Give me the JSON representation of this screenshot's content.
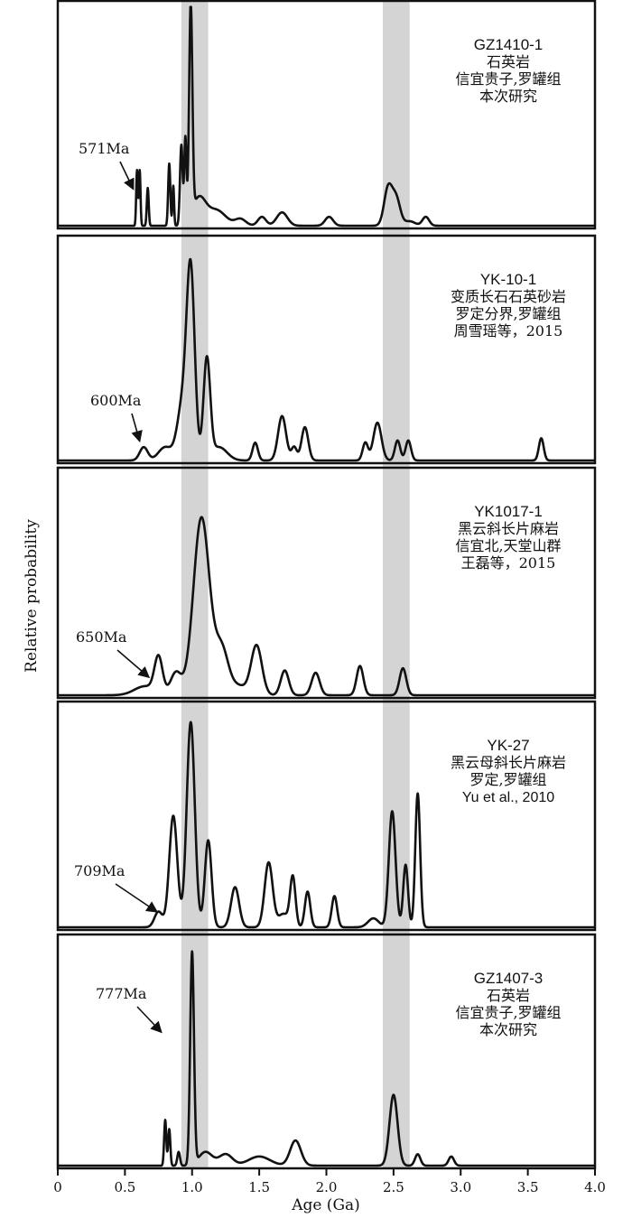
{
  "chart_data": {
    "type": "line",
    "xlabel": "Age (Ga)",
    "ylabel": "Relative probability",
    "xlim": [
      0,
      4.0
    ],
    "x_ticks": [
      "0",
      "0.5",
      "1.0",
      "1.5",
      "2.0",
      "2.5",
      "3.0",
      "3.5",
      "4.0"
    ],
    "x_tick_values": [
      0,
      0.5,
      1.0,
      1.5,
      2.0,
      2.5,
      3.0,
      3.5,
      4.0
    ],
    "shaded_bands": [
      [
        0.92,
        1.12
      ],
      [
        2.42,
        2.62
      ]
    ],
    "band_color": "#d4d4d4",
    "line_color": "#111111",
    "panels": [
      {
        "labels": [
          "GZ1410-1",
          "石英岩",
          "信宜贵子,罗罐组",
          "本次研究"
        ],
        "annotation": "571Ma",
        "annotation_age": 0.571,
        "peaks": [
          {
            "age": 0.59,
            "amp": 0.25,
            "w": 0.006
          },
          {
            "age": 0.61,
            "amp": 0.25,
            "w": 0.006
          },
          {
            "age": 0.67,
            "amp": 0.17,
            "w": 0.007
          },
          {
            "age": 0.83,
            "amp": 0.28,
            "w": 0.008
          },
          {
            "age": 0.86,
            "amp": 0.18,
            "w": 0.006
          },
          {
            "age": 0.92,
            "amp": 0.36,
            "w": 0.01
          },
          {
            "age": 0.95,
            "amp": 0.38,
            "w": 0.008
          },
          {
            "age": 0.99,
            "amp": 0.95,
            "w": 0.012
          },
          {
            "age": 1.05,
            "amp": 0.12,
            "w": 0.05
          },
          {
            "age": 1.18,
            "amp": 0.07,
            "w": 0.07
          },
          {
            "age": 1.36,
            "amp": 0.03,
            "w": 0.04
          },
          {
            "age": 1.52,
            "amp": 0.04,
            "w": 0.03
          },
          {
            "age": 1.67,
            "amp": 0.06,
            "w": 0.04
          },
          {
            "age": 2.02,
            "amp": 0.04,
            "w": 0.03
          },
          {
            "age": 2.46,
            "amp": 0.17,
            "w": 0.03
          },
          {
            "age": 2.52,
            "amp": 0.12,
            "w": 0.03
          },
          {
            "age": 2.62,
            "amp": 0.02,
            "w": 0.04
          },
          {
            "age": 2.74,
            "amp": 0.04,
            "w": 0.025
          }
        ]
      },
      {
        "labels": [
          "YK-10-1",
          "变质长石石英砂岩",
          "罗定分界,罗罐组",
          "周雪瑶等，2015"
        ],
        "annotation": "600Ma",
        "annotation_age": 0.6,
        "peaks": [
          {
            "age": 0.64,
            "amp": 0.06,
            "w": 0.03
          },
          {
            "age": 0.8,
            "amp": 0.06,
            "w": 0.05
          },
          {
            "age": 0.93,
            "amp": 0.25,
            "w": 0.04
          },
          {
            "age": 0.99,
            "amp": 0.82,
            "w": 0.03
          },
          {
            "age": 1.11,
            "amp": 0.45,
            "w": 0.025
          },
          {
            "age": 1.2,
            "amp": 0.06,
            "w": 0.06
          },
          {
            "age": 1.47,
            "amp": 0.08,
            "w": 0.02
          },
          {
            "age": 1.67,
            "amp": 0.2,
            "w": 0.03
          },
          {
            "age": 1.76,
            "amp": 0.06,
            "w": 0.02
          },
          {
            "age": 1.84,
            "amp": 0.15,
            "w": 0.025
          },
          {
            "age": 2.29,
            "amp": 0.08,
            "w": 0.02
          },
          {
            "age": 2.38,
            "amp": 0.17,
            "w": 0.03
          },
          {
            "age": 2.53,
            "amp": 0.09,
            "w": 0.02
          },
          {
            "age": 2.61,
            "amp": 0.09,
            "w": 0.02
          },
          {
            "age": 3.6,
            "amp": 0.1,
            "w": 0.018
          }
        ]
      },
      {
        "labels": [
          "YK1017-1",
          "黑云斜长片麻岩",
          "信宜北,天堂山群",
          "王磊等，2015"
        ],
        "annotation": "650Ma",
        "annotation_age": 0.65,
        "peaks": [
          {
            "age": 0.65,
            "amp": 0.04,
            "w": 0.08
          },
          {
            "age": 0.75,
            "amp": 0.16,
            "w": 0.03
          },
          {
            "age": 0.88,
            "amp": 0.1,
            "w": 0.04
          },
          {
            "age": 1.07,
            "amp": 0.79,
            "w": 0.06
          },
          {
            "age": 1.22,
            "amp": 0.2,
            "w": 0.05
          },
          {
            "age": 1.35,
            "amp": 0.04,
            "w": 0.06
          },
          {
            "age": 1.48,
            "amp": 0.22,
            "w": 0.04
          },
          {
            "age": 1.69,
            "amp": 0.11,
            "w": 0.03
          },
          {
            "age": 1.92,
            "amp": 0.1,
            "w": 0.03
          },
          {
            "age": 2.25,
            "amp": 0.13,
            "w": 0.025
          },
          {
            "age": 2.57,
            "amp": 0.12,
            "w": 0.025
          }
        ]
      },
      {
        "labels": [
          "YK-27",
          "黑云母斜长片麻岩",
          "罗定,罗罐组",
          "Yu et al., 2010"
        ],
        "annotation": "709Ma",
        "annotation_age": 0.709,
        "peaks": [
          {
            "age": 0.75,
            "amp": 0.07,
            "w": 0.03
          },
          {
            "age": 0.86,
            "amp": 0.5,
            "w": 0.03
          },
          {
            "age": 0.99,
            "amp": 0.92,
            "w": 0.03
          },
          {
            "age": 1.12,
            "amp": 0.39,
            "w": 0.025
          },
          {
            "age": 1.32,
            "amp": 0.18,
            "w": 0.03
          },
          {
            "age": 1.57,
            "amp": 0.29,
            "w": 0.03
          },
          {
            "age": 1.68,
            "amp": 0.06,
            "w": 0.04
          },
          {
            "age": 1.75,
            "amp": 0.22,
            "w": 0.02
          },
          {
            "age": 1.86,
            "amp": 0.16,
            "w": 0.02
          },
          {
            "age": 2.06,
            "amp": 0.14,
            "w": 0.02
          },
          {
            "age": 2.35,
            "amp": 0.04,
            "w": 0.04
          },
          {
            "age": 2.49,
            "amp": 0.52,
            "w": 0.025
          },
          {
            "age": 2.59,
            "amp": 0.28,
            "w": 0.018
          },
          {
            "age": 2.68,
            "amp": 0.6,
            "w": 0.018
          }
        ]
      },
      {
        "labels": [
          "GZ1407-3",
          "石英岩",
          "信宜贵子,罗罐组",
          "本次研究"
        ],
        "annotation": "777Ma",
        "annotation_age": 0.777,
        "peaks": [
          {
            "age": 0.8,
            "amp": 0.2,
            "w": 0.008
          },
          {
            "age": 0.83,
            "amp": 0.16,
            "w": 0.008
          },
          {
            "age": 0.9,
            "amp": 0.06,
            "w": 0.01
          },
          {
            "age": 1.0,
            "amp": 0.93,
            "w": 0.014
          },
          {
            "age": 1.1,
            "amp": 0.06,
            "w": 0.05
          },
          {
            "age": 1.25,
            "amp": 0.05,
            "w": 0.05
          },
          {
            "age": 1.5,
            "amp": 0.04,
            "w": 0.08
          },
          {
            "age": 1.77,
            "amp": 0.11,
            "w": 0.04
          },
          {
            "age": 2.5,
            "amp": 0.31,
            "w": 0.03
          },
          {
            "age": 2.68,
            "amp": 0.05,
            "w": 0.02
          },
          {
            "age": 2.93,
            "amp": 0.04,
            "w": 0.02
          }
        ]
      }
    ]
  }
}
